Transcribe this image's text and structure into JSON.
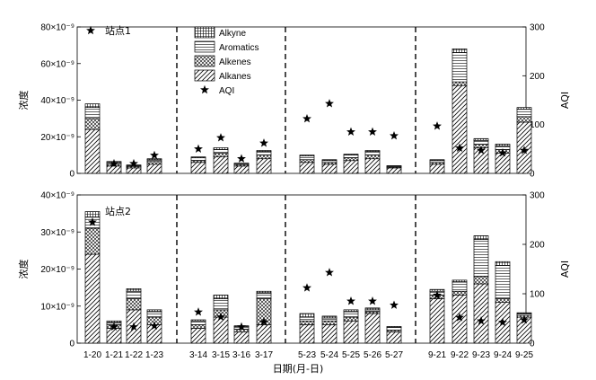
{
  "chart_data": {
    "type": "bar",
    "stacked": true,
    "x_title": "日期(月-日)",
    "categories": [
      "1-20",
      "1-21",
      "1-22",
      "1-23",
      "3-14",
      "3-15",
      "3-16",
      "3-17",
      "5-23",
      "5-24",
      "5-25",
      "5-26",
      "5-27",
      "9-21",
      "9-22",
      "9-23",
      "9-24",
      "9-25"
    ],
    "groups": [
      [
        "1-20",
        "1-21",
        "1-22",
        "1-23"
      ],
      [
        "3-14",
        "3-15",
        "3-16",
        "3-17"
      ],
      [
        "5-23",
        "5-24",
        "5-25",
        "5-26",
        "5-27"
      ],
      [
        "9-21",
        "9-22",
        "9-23",
        "9-24",
        "9-25"
      ]
    ],
    "series_names": [
      "Alkanes",
      "Alkenes",
      "Aromatics",
      "Alkyne"
    ],
    "legend": {
      "entries": [
        "Alkyne",
        "Aromatics",
        "Alkenes",
        "Alkanes",
        "AQI"
      ],
      "placement": "top-left of upper panel"
    },
    "panels": [
      {
        "station": "站点1",
        "ylabel_left": "浓度",
        "ylabel_right": "AQI",
        "left_ticks": [
          "0",
          "20×10⁻⁹",
          "40×10⁻⁹",
          "60×10⁻⁹",
          "80×10⁻⁹"
        ],
        "left_ylim": [
          0,
          80
        ],
        "right_ticks": [
          "0",
          "100",
          "200",
          "300"
        ],
        "right_ylim": [
          0,
          300
        ],
        "series": [
          {
            "name": "Alkanes",
            "values": [
              24,
              4,
              3,
              5,
              6,
              9,
              4,
              8,
              6,
              5,
              7,
              8,
              3,
              5,
              48,
              14,
              11,
              28
            ]
          },
          {
            "name": "Alkenes",
            "values": [
              6,
              1,
              0.8,
              1.5,
              1,
              2,
              0.8,
              2,
              1.5,
              1,
              1.5,
              2,
              0.5,
              1,
              2,
              2,
              2,
              3
            ]
          },
          {
            "name": "Aromatics",
            "values": [
              6,
              1,
              0.5,
              1,
              1.5,
              2,
              0.5,
              2,
              2,
              1,
              1.5,
              2,
              0.5,
              1,
              16,
              2,
              2,
              4
            ]
          },
          {
            "name": "Alkyne",
            "values": [
              2,
              0.5,
              0.3,
              0.5,
              0.5,
              1,
              0.3,
              0.5,
              0.5,
              0.5,
              0.5,
              0.5,
              0.2,
              0.5,
              2,
              1,
              1,
              1
            ]
          }
        ],
        "aqi": [
          null,
          20,
          20,
          37,
          50,
          73,
          30,
          62,
          112,
          143,
          85,
          85,
          77,
          97,
          52,
          47,
          42,
          47
        ]
      },
      {
        "station": "站点2",
        "ylabel_left": "浓度",
        "ylabel_right": "AQI",
        "left_ticks": [
          "0",
          "10×10⁻⁹",
          "20×10⁻⁹",
          "30×10⁻⁹",
          "40×10⁻⁹"
        ],
        "left_ylim": [
          0,
          40
        ],
        "right_ticks": [
          "0",
          "100",
          "200",
          "300"
        ],
        "right_ylim": [
          0,
          300
        ],
        "series": [
          {
            "name": "Alkanes",
            "values": [
              24,
              4,
              9,
              5,
              4,
              7,
              3,
              5,
              5,
              5,
              6,
              8,
              3,
              12,
              13,
              16,
              11,
              7
            ]
          },
          {
            "name": "Alkenes",
            "values": [
              7,
              1,
              3,
              2,
              1,
              2,
              0.8,
              7,
              1,
              1,
              1,
              0.5,
              0.5,
              1,
              1,
              2,
              1,
              0.5
            ]
          },
          {
            "name": "Aromatics",
            "values": [
              3,
              0.5,
              2,
              1.5,
              1,
              3,
              0.7,
              1.5,
              1,
              0.8,
              1.5,
              0.5,
              0.8,
              1,
              2.5,
              10,
              9,
              0.5
            ]
          },
          {
            "name": "Alkyne",
            "values": [
              1.5,
              0.5,
              0.7,
              0.5,
              0.3,
              1,
              0.2,
              0.5,
              1,
              0.5,
              0.5,
              0.5,
              0.2,
              0.5,
              0.5,
              1,
              1,
              0.2
            ]
          }
        ],
        "aqi": [
          245,
          33,
          33,
          35,
          63,
          53,
          33,
          43,
          112,
          143,
          85,
          85,
          77,
          97,
          52,
          45,
          42,
          47
        ]
      }
    ],
    "colors": {
      "stroke": "#000000",
      "background": "#ffffff"
    }
  }
}
